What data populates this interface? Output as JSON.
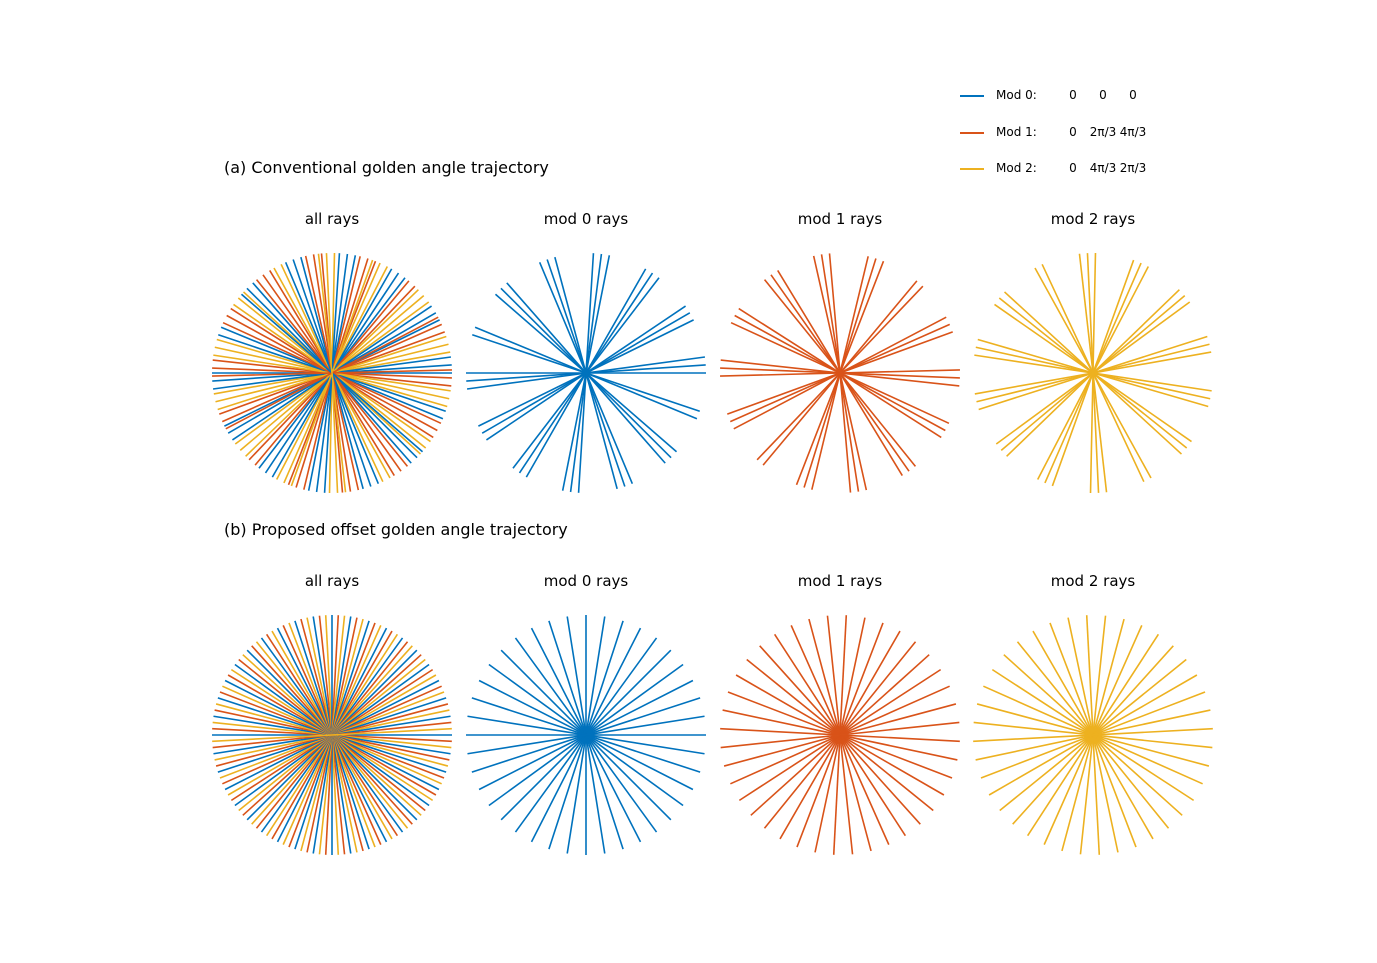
{
  "colors": {
    "mod0": "#0072bd",
    "mod1": "#d95319",
    "mod2": "#edb120"
  },
  "legend": [
    {
      "label": "Mod 0:",
      "color": "mod0",
      "values": [
        "0",
        "0",
        "0"
      ]
    },
    {
      "label": "Mod 1:",
      "color": "mod1",
      "values": [
        "0",
        "2π/3",
        "4π/3"
      ]
    },
    {
      "label": "Mod 2:",
      "color": "mod2",
      "values": [
        "0",
        "4π/3",
        "2π/3"
      ]
    }
  ],
  "section_a": {
    "title": "(a) Conventional golden angle trajectory",
    "panels": [
      "all rays",
      "mod 0 rays",
      "mod 1 rays",
      "mod 2 rays"
    ],
    "trajectory": "golden",
    "num_rays": 60
  },
  "section_b": {
    "title": "(b) Proposed offset golden angle trajectory",
    "panels": [
      "all rays",
      "mod 0 rays",
      "mod 1 rays",
      "mod 2 rays"
    ],
    "trajectory": "offset",
    "num_rays": 60
  }
}
